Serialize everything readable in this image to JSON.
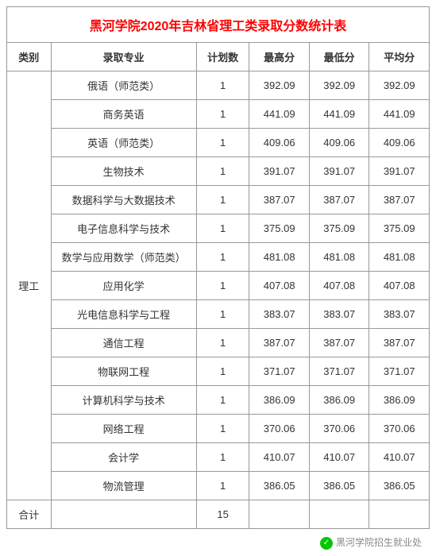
{
  "title": "黑河学院2020年吉林省理工类录取分数统计表",
  "headers": {
    "category": "类别",
    "major": "录取专业",
    "plan": "计划数",
    "max": "最高分",
    "min": "最低分",
    "avg": "平均分"
  },
  "category_label": "理工",
  "rows": [
    {
      "major": "俄语（师范类）",
      "plan": "1",
      "max": "392.09",
      "min": "392.09",
      "avg": "392.09"
    },
    {
      "major": "商务英语",
      "plan": "1",
      "max": "441.09",
      "min": "441.09",
      "avg": "441.09"
    },
    {
      "major": "英语（师范类）",
      "plan": "1",
      "max": "409.06",
      "min": "409.06",
      "avg": "409.06"
    },
    {
      "major": "生物技术",
      "plan": "1",
      "max": "391.07",
      "min": "391.07",
      "avg": "391.07"
    },
    {
      "major": "数据科学与大数据技术",
      "plan": "1",
      "max": "387.07",
      "min": "387.07",
      "avg": "387.07"
    },
    {
      "major": "电子信息科学与技术",
      "plan": "1",
      "max": "375.09",
      "min": "375.09",
      "avg": "375.09"
    },
    {
      "major": "数学与应用数学（师范类）",
      "plan": "1",
      "max": "481.08",
      "min": "481.08",
      "avg": "481.08"
    },
    {
      "major": "应用化学",
      "plan": "1",
      "max": "407.08",
      "min": "407.08",
      "avg": "407.08"
    },
    {
      "major": "光电信息科学与工程",
      "plan": "1",
      "max": "383.07",
      "min": "383.07",
      "avg": "383.07"
    },
    {
      "major": "通信工程",
      "plan": "1",
      "max": "387.07",
      "min": "387.07",
      "avg": "387.07"
    },
    {
      "major": "物联网工程",
      "plan": "1",
      "max": "371.07",
      "min": "371.07",
      "avg": "371.07"
    },
    {
      "major": "计算机科学与技术",
      "plan": "1",
      "max": "386.09",
      "min": "386.09",
      "avg": "386.09"
    },
    {
      "major": "网络工程",
      "plan": "1",
      "max": "370.06",
      "min": "370.06",
      "avg": "370.06"
    },
    {
      "major": "会计学",
      "plan": "1",
      "max": "410.07",
      "min": "410.07",
      "avg": "410.07"
    },
    {
      "major": "物流管理",
      "plan": "1",
      "max": "386.05",
      "min": "386.05",
      "avg": "386.05"
    }
  ],
  "total": {
    "label": "合计",
    "plan": "15"
  },
  "footer": "黑河学院招生就业处",
  "colors": {
    "title": "#ff0000",
    "border": "#999999",
    "text": "#333333",
    "footer_text": "#888888",
    "wechat_bg": "#00c800"
  }
}
